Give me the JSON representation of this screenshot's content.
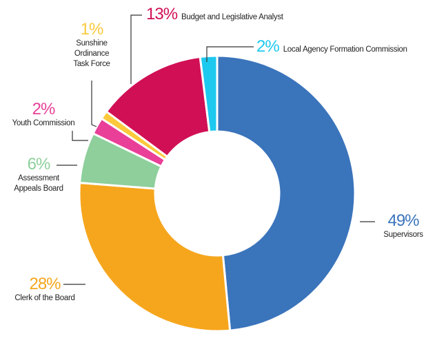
{
  "chart_data": {
    "type": "donut",
    "categories": [
      "Supervisors",
      "Clerk of the Board",
      "Assessment Appeals Board",
      "Youth Commission",
      "Sunshine Ordinance Task Force",
      "Budget and Legislative Analyst",
      "Local Agency Formation Commission"
    ],
    "values": [
      49,
      28,
      6,
      2,
      1,
      13,
      2
    ],
    "value_labels": [
      "49%",
      "28%",
      "6%",
      "2%",
      "1%",
      "13%",
      "2%"
    ],
    "colors": [
      "#3a74bb",
      "#f6a61d",
      "#8ecf9b",
      "#e93f98",
      "#fbc93b",
      "#d10f55",
      "#1ec9ef"
    ]
  }
}
